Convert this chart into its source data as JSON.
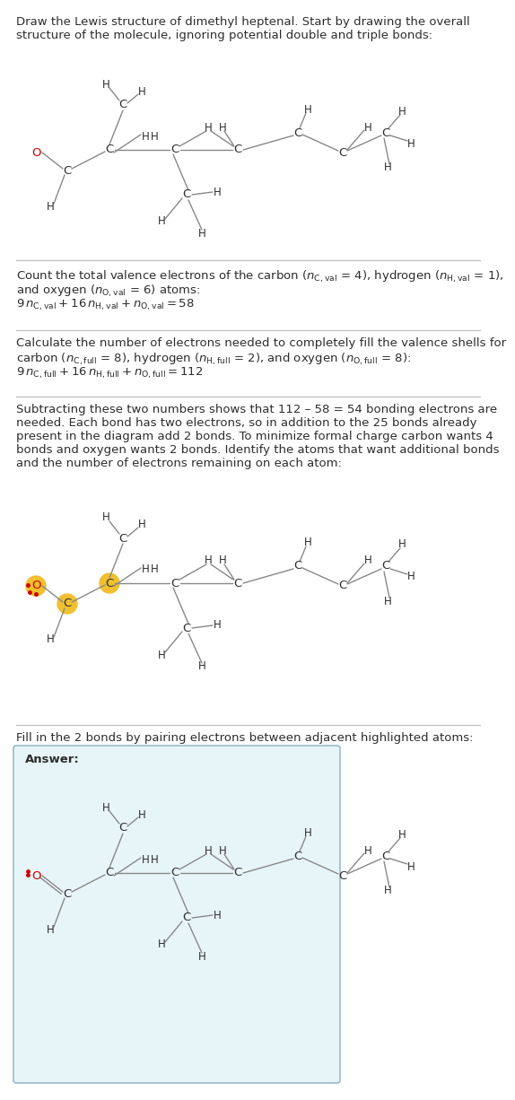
{
  "bg_color": "#ffffff",
  "text_color": "#2d2d2d",
  "bond_color": "#888888",
  "C_color": "#2d2d2d",
  "H_color": "#2d2d2d",
  "O_color": "#cc0000",
  "highlight_color": "#f0c030",
  "sep_color": "#bbbbbb",
  "answer_bg": "#e8f5f8",
  "answer_border": "#99bbcc",
  "title": [
    "Draw the Lewis structure of dimethyl heptenal. Start by drawing the overall",
    "structure of the molecule, ignoring potential double and triple bonds:"
  ],
  "s2_lines": [
    "Count the total valence electrons of the carbon ($n_{\\\\mathrm{C,val}}$ = 4), hydrogen ($n_{\\\\mathrm{H,val}}$ = 1),",
    "and oxygen ($n_{\\\\mathrm{O,val}}$ = 6) atoms:",
    "$9\\\\,n_{\\\\mathrm{C,val}} + 16\\\\,n_{\\\\mathrm{H,val}} + n_{\\\\mathrm{O,val}} = 58$"
  ],
  "s3_lines": [
    "Calculate the number of electrons needed to completely fill the valence shells for",
    "carbon ($n_{\\\\mathrm{C,full}}$ = 8), hydrogen ($n_{\\\\mathrm{H,full}}$ = 2), and oxygen ($n_{\\\\mathrm{O,full}}$ = 8):",
    "$9\\\\,n_{\\\\mathrm{C,full}} + 16\\\\,n_{\\\\mathrm{H,full}} + n_{\\\\mathrm{O,full}} = 112$"
  ],
  "s4_lines": [
    "Subtracting these two numbers shows that 112 – 58 = 54 bonding electrons are",
    "needed. Each bond has two electrons, so in addition to the 25 bonds already",
    "present in the diagram add 2 bonds. To minimize formal charge carbon wants 4",
    "bonds and oxygen wants 2 bonds. Identify the atoms that want additional bonds",
    "and the number of electrons remaining on each atom:"
  ],
  "s5_line": "Fill in the 2 bonds by pairing electrons between adjacent highlighted atoms:",
  "answer_label": "Answer:"
}
